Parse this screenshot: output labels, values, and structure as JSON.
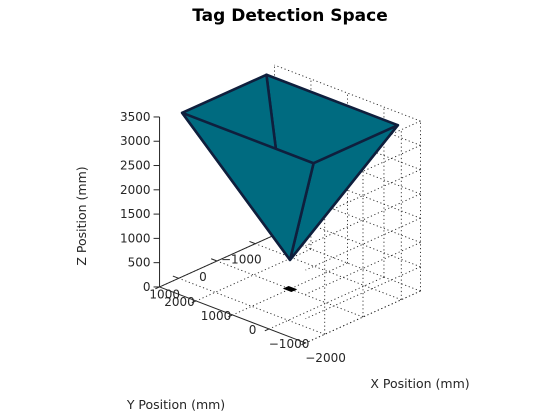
{
  "chart_data": {
    "type": "3d-surface",
    "title": "Tag Detection Space",
    "xlabel": "X Position (mm)",
    "ylabel": "Y Position (mm)",
    "zlabel": "Z Position (mm)",
    "x_ticks": [
      "−2000",
      "−1000",
      "0",
      "1000",
      "2000"
    ],
    "y_ticks": [
      "−1000",
      "0",
      "1000"
    ],
    "z_ticks": [
      "0",
      "500",
      "1000",
      "1500",
      "2000",
      "2500",
      "3000",
      "3500"
    ],
    "xlim": [
      -2000,
      2000
    ],
    "ylim": [
      -1500,
      1500
    ],
    "zlim": [
      0,
      3500
    ],
    "grid": true,
    "face_color": "#006b80",
    "edge_color": "#0f1f3d",
    "pyramid": {
      "apex": [
        0,
        0,
        600
      ],
      "top_corners": [
        [
          -1800,
          -1100,
          3500
        ],
        [
          1800,
          -1100,
          3500
        ],
        [
          1800,
          1100,
          3500
        ],
        [
          -1800,
          1100,
          3500
        ]
      ]
    },
    "base_marker": [
      [
        -100,
        -60,
        0
      ],
      [
        100,
        -60,
        0
      ],
      [
        100,
        60,
        0
      ],
      [
        -100,
        60,
        0
      ]
    ]
  }
}
